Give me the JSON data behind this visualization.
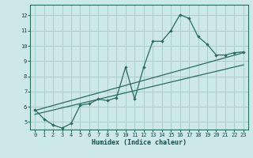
{
  "xlabel": "Humidex (Indice chaleur)",
  "bg_color": "#cce8e8",
  "grid_color": "#aacccc",
  "line_color": "#2a6b5a",
  "xlim": [
    -0.5,
    23.5
  ],
  "ylim": [
    4.5,
    12.7
  ],
  "xticks": [
    0,
    1,
    2,
    3,
    4,
    5,
    6,
    7,
    8,
    9,
    10,
    11,
    12,
    13,
    14,
    15,
    16,
    17,
    18,
    19,
    20,
    21,
    22,
    23
  ],
  "yticks": [
    5,
    6,
    7,
    8,
    9,
    10,
    11,
    12
  ],
  "series1_x": [
    0,
    1,
    2,
    3,
    4,
    5,
    6,
    7,
    8,
    9,
    10,
    11,
    12,
    13,
    14,
    15,
    16,
    17,
    18,
    19,
    20,
    21,
    22,
    23
  ],
  "series1_y": [
    5.8,
    5.2,
    4.8,
    4.6,
    4.9,
    6.1,
    6.2,
    6.5,
    6.4,
    6.6,
    8.6,
    6.5,
    8.6,
    10.3,
    10.3,
    11.0,
    12.05,
    11.8,
    10.6,
    10.1,
    9.4,
    9.4,
    9.55,
    9.6
  ],
  "trend1_x": [
    0,
    23
  ],
  "trend1_y": [
    5.75,
    9.55
  ],
  "trend2_x": [
    0,
    23
  ],
  "trend2_y": [
    5.5,
    8.75
  ]
}
